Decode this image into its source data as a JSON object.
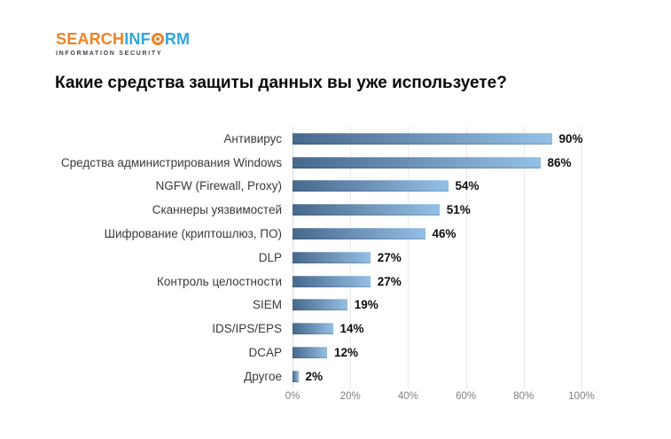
{
  "logo": {
    "part1": "SEARCH",
    "part2": "INF",
    "part3": "RM",
    "tagline": "INFORMATION SECURITY",
    "orange": "#F08224",
    "blue": "#2EA6DE",
    "tagline_color": "#3E4450"
  },
  "title": "Какие средства защиты данных вы уже используете?",
  "chart_data": {
    "type": "bar",
    "orientation": "horizontal",
    "title": "Какие средства защиты данных вы уже используете?",
    "categories": [
      "Антивирус",
      "Средства администрирования Windows",
      "NGFW (Firewall, Proxy)",
      "Сканнеры уязвимостей",
      "Шифрование (криптошлюз, ПО)",
      "DLP",
      "Контроль целостности",
      "SIEM",
      "IDS/IPS/EPS",
      "DCAP",
      "Другое"
    ],
    "values": [
      90,
      86,
      54,
      51,
      46,
      27,
      27,
      19,
      14,
      12,
      2
    ],
    "value_labels": [
      "90%",
      "86%",
      "54%",
      "51%",
      "46%",
      "27%",
      "27%",
      "19%",
      "14%",
      "12%",
      "2%"
    ],
    "xlim": [
      0,
      100
    ],
    "tick_labels": [
      "0%",
      "20%",
      "40%",
      "60%",
      "80%",
      "100%"
    ],
    "grid": "vertical-light",
    "legend": "none",
    "bar_gradient": [
      "#46698D",
      "#94C0E5"
    ],
    "gridline_color": "#E8E8E8",
    "axis_label_color": "#808080"
  }
}
